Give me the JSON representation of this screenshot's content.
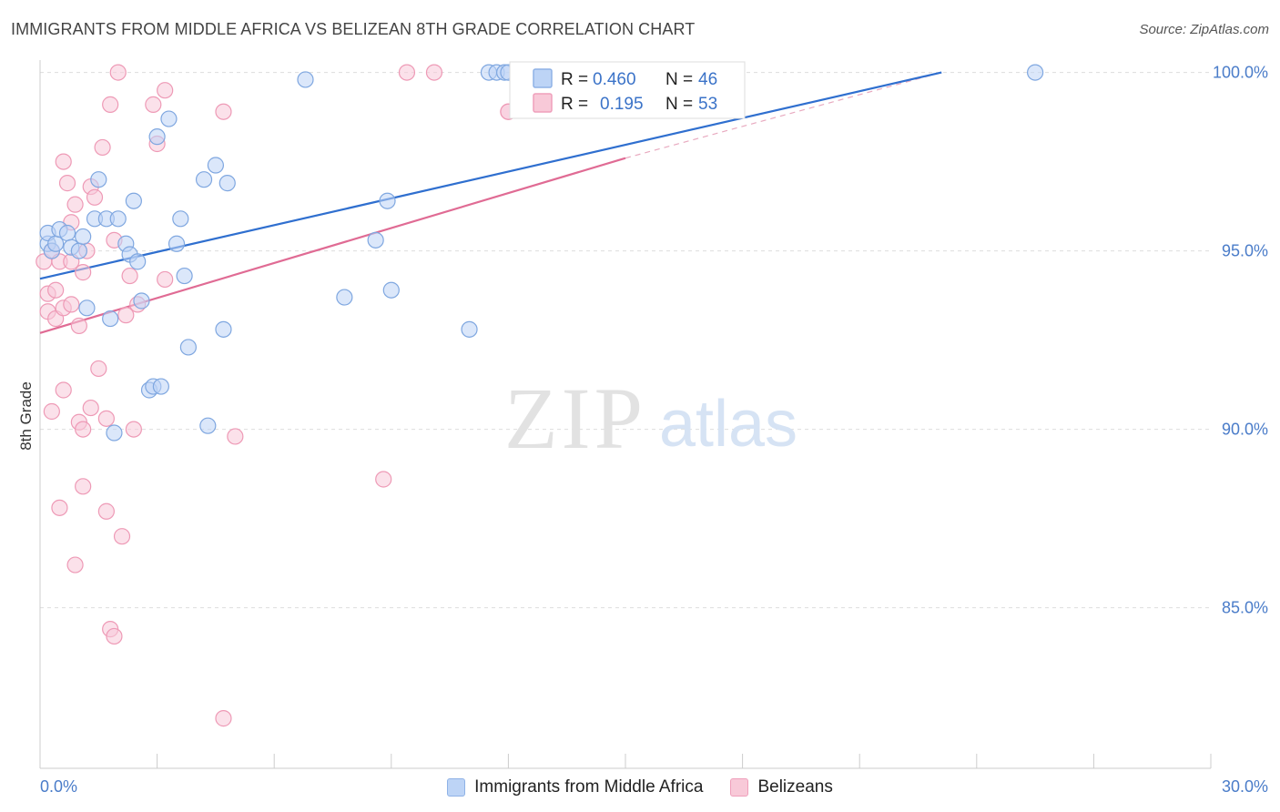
{
  "header": {
    "title": "IMMIGRANTS FROM MIDDLE AFRICA VS BELIZEAN 8TH GRADE CORRELATION CHART",
    "source": "Source: ZipAtlas.com"
  },
  "watermark": {
    "zip": "ZIP",
    "atlas": "atlas"
  },
  "colors": {
    "blue_fill": "#bdd4f6",
    "blue_stroke": "#7fa7e0",
    "blue_line": "#2f6fcf",
    "pink_fill": "#f8c9d8",
    "pink_stroke": "#ee9ab6",
    "pink_line": "#e06b94",
    "grid": "#dddddd",
    "tick_label": "#4a7cc9"
  },
  "chart_data": {
    "type": "scatter",
    "title": "IMMIGRANTS FROM MIDDLE AFRICA VS BELIZEAN 8TH GRADE CORRELATION CHART",
    "xlabel": "",
    "ylabel": "8th Grade",
    "xlim": [
      0,
      30
    ],
    "ylim": [
      80.5,
      100.5
    ],
    "x_tick_labels": [
      "0.0%",
      "30.0%"
    ],
    "y_ticks": [
      85,
      90,
      95,
      100
    ],
    "y_tick_labels": [
      "85.0%",
      "90.0%",
      "95.0%",
      "100.0%"
    ],
    "legend": {
      "position": "top-center",
      "entries": [
        {
          "r_label": "R =",
          "r_value": "0.460",
          "n_label": "N =",
          "n_value": "46"
        },
        {
          "r_label": "R =",
          "r_value": "0.195",
          "n_label": "N =",
          "n_value": "53"
        }
      ]
    },
    "series": [
      {
        "name": "Immigrants from Middle Africa",
        "color": "blue",
        "trend": {
          "x": [
            0,
            23.1
          ],
          "y": [
            94.22,
            100.0
          ]
        },
        "points": [
          [
            0.2,
            95.2
          ],
          [
            0.2,
            95.5
          ],
          [
            0.3,
            95.0
          ],
          [
            0.4,
            95.2
          ],
          [
            0.5,
            95.6
          ],
          [
            0.7,
            95.5
          ],
          [
            0.8,
            95.1
          ],
          [
            1.0,
            95.0
          ],
          [
            1.1,
            95.4
          ],
          [
            1.2,
            93.4
          ],
          [
            1.4,
            95.9
          ],
          [
            1.5,
            97.0
          ],
          [
            1.7,
            95.9
          ],
          [
            1.8,
            93.1
          ],
          [
            1.9,
            89.9
          ],
          [
            2.0,
            95.9
          ],
          [
            2.2,
            95.2
          ],
          [
            2.3,
            94.9
          ],
          [
            2.4,
            96.4
          ],
          [
            2.5,
            94.7
          ],
          [
            2.6,
            93.6
          ],
          [
            2.8,
            91.1
          ],
          [
            2.9,
            91.2
          ],
          [
            3.0,
            98.2
          ],
          [
            3.1,
            91.2
          ],
          [
            3.3,
            98.7
          ],
          [
            3.5,
            95.2
          ],
          [
            3.6,
            95.9
          ],
          [
            3.7,
            94.3
          ],
          [
            3.8,
            92.3
          ],
          [
            4.2,
            97.0
          ],
          [
            4.3,
            90.1
          ],
          [
            4.5,
            97.4
          ],
          [
            4.7,
            92.8
          ],
          [
            4.8,
            96.9
          ],
          [
            6.8,
            99.8
          ],
          [
            7.8,
            93.7
          ],
          [
            8.6,
            95.3
          ],
          [
            8.9,
            96.4
          ],
          [
            9.0,
            93.9
          ],
          [
            11.0,
            92.8
          ],
          [
            11.5,
            100.0
          ],
          [
            11.7,
            100.0
          ],
          [
            11.9,
            100.0
          ],
          [
            12.0,
            100.0
          ],
          [
            25.5,
            100.0
          ]
        ]
      },
      {
        "name": "Belizeans",
        "color": "pink",
        "trend": {
          "x": [
            0,
            15.0
          ],
          "y": [
            92.7,
            97.6
          ]
        },
        "dashed_extension": {
          "x": [
            15.0,
            23.1
          ],
          "y": [
            97.6,
            100.0
          ]
        },
        "points": [
          [
            0.1,
            94.7
          ],
          [
            0.2,
            93.8
          ],
          [
            0.2,
            93.3
          ],
          [
            0.3,
            95.0
          ],
          [
            0.3,
            90.5
          ],
          [
            0.4,
            93.9
          ],
          [
            0.4,
            93.1
          ],
          [
            0.5,
            94.7
          ],
          [
            0.5,
            87.8
          ],
          [
            0.6,
            93.4
          ],
          [
            0.6,
            97.5
          ],
          [
            0.6,
            91.1
          ],
          [
            0.7,
            96.9
          ],
          [
            0.8,
            95.8
          ],
          [
            0.8,
            94.7
          ],
          [
            0.8,
            93.5
          ],
          [
            0.9,
            96.3
          ],
          [
            0.9,
            86.2
          ],
          [
            1.0,
            92.9
          ],
          [
            1.0,
            90.2
          ],
          [
            1.1,
            90.0
          ],
          [
            1.1,
            94.4
          ],
          [
            1.1,
            88.4
          ],
          [
            1.2,
            95.0
          ],
          [
            1.3,
            96.8
          ],
          [
            1.3,
            90.6
          ],
          [
            1.4,
            96.5
          ],
          [
            1.5,
            91.7
          ],
          [
            1.6,
            97.9
          ],
          [
            1.7,
            90.3
          ],
          [
            1.7,
            87.7
          ],
          [
            1.8,
            84.4
          ],
          [
            1.8,
            99.1
          ],
          [
            1.9,
            84.2
          ],
          [
            1.9,
            95.3
          ],
          [
            2.0,
            100.0
          ],
          [
            2.1,
            87.0
          ],
          [
            2.2,
            93.2
          ],
          [
            2.3,
            94.3
          ],
          [
            2.4,
            90.0
          ],
          [
            2.5,
            93.5
          ],
          [
            2.9,
            99.1
          ],
          [
            3.0,
            98.0
          ],
          [
            3.2,
            99.5
          ],
          [
            3.2,
            94.2
          ],
          [
            4.7,
            98.9
          ],
          [
            4.7,
            81.9
          ],
          [
            5.0,
            89.8
          ],
          [
            8.8,
            88.6
          ],
          [
            9.4,
            100.0
          ],
          [
            10.1,
            100.0
          ],
          [
            12.0,
            98.9
          ],
          [
            12.0,
            98.9
          ]
        ]
      }
    ]
  },
  "bottom_legend": {
    "items": [
      {
        "label": "Immigrants from Middle Africa",
        "color": "blue"
      },
      {
        "label": "Belizeans",
        "color": "pink"
      }
    ]
  }
}
